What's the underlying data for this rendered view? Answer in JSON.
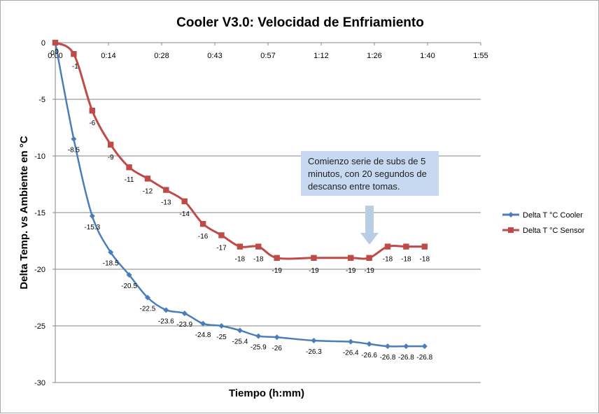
{
  "chart_data": {
    "type": "line",
    "title": "Cooler V3.0: Velocidad de Enfriamiento",
    "xlabel": "Tiempo (h:mm)",
    "ylabel": "Delta Temp. vs Ambiente  en °C",
    "x_tick_labels": [
      "0:00",
      "0:14",
      "0:28",
      "0:43",
      "0:57",
      "1:12",
      "1:26",
      "1:40",
      "1:55"
    ],
    "x_tick_minutes": [
      0,
      14.4,
      28.8,
      43.2,
      57.6,
      72,
      86.4,
      100.8,
      115.2
    ],
    "xlim_minutes": [
      0,
      115.2
    ],
    "ylim": [
      -30,
      0
    ],
    "y_ticks": [
      0,
      -5,
      -10,
      -15,
      -20,
      -25,
      -30
    ],
    "grid": "horizontal",
    "legend_position": "right",
    "series": [
      {
        "name": "Delta T °C Cooler",
        "color": "#4a7ebb",
        "marker": "diamond",
        "x_minutes": [
          0,
          5,
          10,
          15,
          20,
          25,
          30,
          35,
          40,
          45,
          50,
          55,
          60,
          70,
          80,
          85,
          90,
          95,
          100
        ],
        "values": [
          0,
          -8.5,
          -15.3,
          -18.5,
          -20.5,
          -22.5,
          -23.6,
          -23.9,
          -24.8,
          -25,
          -25.4,
          -25.9,
          -26,
          -26.3,
          -26.4,
          -26.6,
          -26.8,
          -26.8,
          -26.8
        ]
      },
      {
        "name": "Delta T °C Sensor",
        "color": "#be4b48",
        "marker": "square",
        "x_minutes": [
          0,
          5,
          10,
          15,
          20,
          25,
          30,
          35,
          40,
          45,
          50,
          55,
          60,
          70,
          80,
          85,
          90,
          95,
          100
        ],
        "values": [
          0,
          -1,
          -6,
          -9,
          -11,
          -12,
          -13,
          -14,
          -16,
          -17,
          -18,
          -18,
          -19,
          -19,
          -19,
          -19,
          -18,
          -18,
          -18
        ]
      }
    ],
    "annotation": {
      "text_lines": [
        "Comienzo serie de subs de 5",
        "minutos, con 20 segundos de",
        "descanso entre tomas."
      ],
      "fill": "#c6d9f1",
      "arrow_fill": "#b9cde5"
    }
  }
}
